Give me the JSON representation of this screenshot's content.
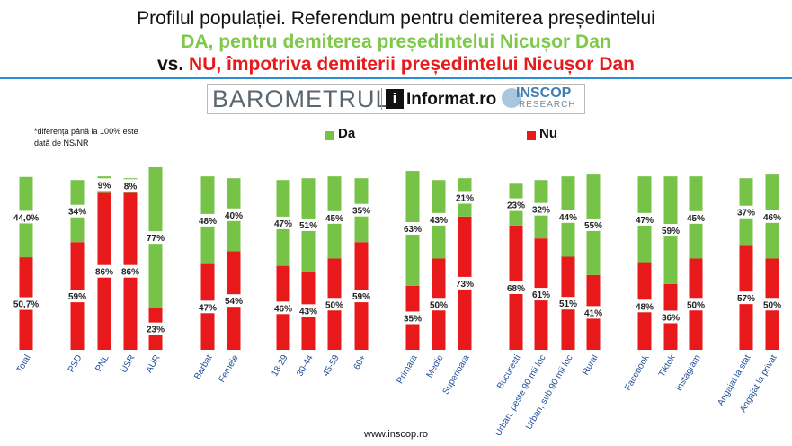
{
  "title_line1": "Profilul populației. Referendum pentru demiterea președintelui",
  "title_line2": "DA, pentru demiterea președintelui Nicușor Dan",
  "title_line3_prefix": "vs.",
  "title_line3_main": "NU, împotriva demiterii președintelui Nicușor Dan",
  "logo": {
    "barometrul": "BAROMETRUL",
    "informat": "Informat.ro",
    "inscop": "INSCOP",
    "research": "RESEARCH"
  },
  "note": "*diferența până la 100% este dată de NS/NR",
  "footer": "www.inscop.ro",
  "colors": {
    "da": "#77c348",
    "nu": "#e8191b",
    "axis_label": "#1f4e9a",
    "rule": "#2a8fd4"
  },
  "chart_data": {
    "type": "bar",
    "stacked": true,
    "ylim": [
      0,
      100
    ],
    "series": [
      {
        "name": "Nu",
        "color": "#e8191b",
        "labels": [
          "50,7%",
          "59%",
          "86%",
          "86%",
          "23%",
          "47%",
          "54%",
          "46%",
          "43%",
          "50%",
          "59%",
          "35%",
          "50%",
          "73%",
          "68%",
          "61%",
          "51%",
          "41%",
          "48%",
          "36%",
          "50%",
          "57%",
          "50%"
        ],
        "values": [
          50.7,
          59,
          86,
          86,
          23,
          47,
          54,
          46,
          43,
          50,
          59,
          35,
          50,
          73,
          68,
          61,
          51,
          41,
          48,
          36,
          50,
          57,
          50
        ]
      },
      {
        "name": "Da",
        "color": "#77c348",
        "labels": [
          "44,0%",
          "34%",
          "9%",
          "8%",
          "77%",
          "48%",
          "40%",
          "47%",
          "51%",
          "45%",
          "35%",
          "63%",
          "43%",
          "21%",
          "23%",
          "32%",
          "44%",
          "55%",
          "47%",
          "59%",
          "45%",
          "37%",
          "46%"
        ],
        "values": [
          44.0,
          34,
          9,
          8,
          77,
          48,
          40,
          47,
          51,
          45,
          35,
          63,
          43,
          21,
          23,
          32,
          44,
          55,
          47,
          59,
          45,
          37,
          46
        ]
      }
    ],
    "categories": [
      "Total",
      "PSD",
      "PNL",
      "USR",
      "AUR",
      "Barbat",
      "Femeie",
      "18-29",
      "30-44",
      "45-59",
      "60+",
      "Primara",
      "Medie",
      "Superioara",
      "Bucuresti",
      "Urban, peste 90 mii loc",
      "Urban, sub 90 mii loc",
      "Rural",
      "Facebook",
      "Tiktok",
      "Instagram",
      "Angajat la stat",
      "Angajat la privat"
    ]
  }
}
